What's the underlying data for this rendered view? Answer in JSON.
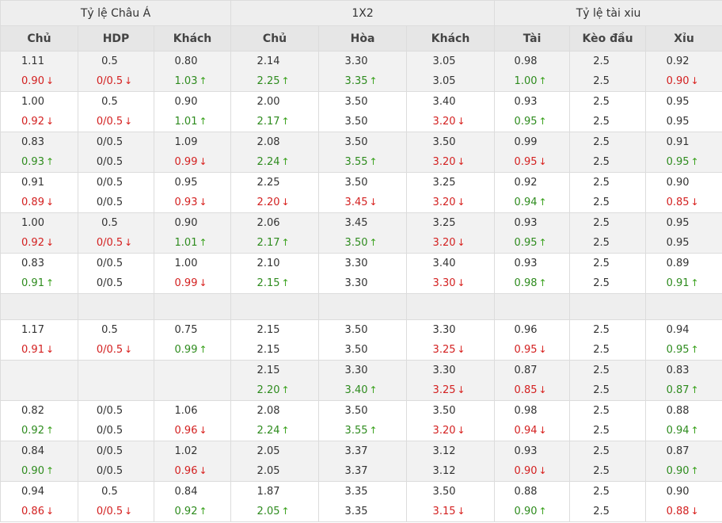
{
  "groups": [
    "Tỷ lệ Châu Á",
    "1X2",
    "Tỷ lệ tài xiu"
  ],
  "columns": [
    "Chủ",
    "HDP",
    "Khách",
    "Chủ",
    "Hòa",
    "Khách",
    "Tài",
    "Kèo đầu",
    "Xỉu"
  ],
  "colors": {
    "up": "#2e8b1e",
    "down": "#d32020",
    "neutral": "#333333"
  },
  "icons": {
    "up": "arrow-up-icon",
    "down": "arrow-down-icon"
  },
  "rows": [
    {
      "cells": [
        {
          "top": "1.11",
          "bot": "0.90",
          "dir": "down"
        },
        {
          "top": "0.5",
          "bot": "0/0.5",
          "dir": "down"
        },
        {
          "top": "0.80",
          "bot": "1.03",
          "dir": "up"
        },
        {
          "top": "2.14",
          "bot": "2.25",
          "dir": "up"
        },
        {
          "top": "3.30",
          "bot": "3.35",
          "dir": "up"
        },
        {
          "top": "3.05",
          "bot": "3.05",
          "dir": ""
        },
        {
          "top": "0.98",
          "bot": "1.00",
          "dir": "up"
        },
        {
          "top": "2.5",
          "bot": "2.5",
          "dir": ""
        },
        {
          "top": "0.92",
          "bot": "0.90",
          "dir": "down"
        }
      ]
    },
    {
      "cells": [
        {
          "top": "1.00",
          "bot": "0.92",
          "dir": "down"
        },
        {
          "top": "0.5",
          "bot": "0/0.5",
          "dir": "down"
        },
        {
          "top": "0.90",
          "bot": "1.01",
          "dir": "up"
        },
        {
          "top": "2.00",
          "bot": "2.17",
          "dir": "up"
        },
        {
          "top": "3.50",
          "bot": "3.50",
          "dir": ""
        },
        {
          "top": "3.40",
          "bot": "3.20",
          "dir": "down"
        },
        {
          "top": "0.93",
          "bot": "0.95",
          "dir": "up"
        },
        {
          "top": "2.5",
          "bot": "2.5",
          "dir": ""
        },
        {
          "top": "0.95",
          "bot": "0.95",
          "dir": ""
        }
      ]
    },
    {
      "cells": [
        {
          "top": "0.83",
          "bot": "0.93",
          "dir": "up"
        },
        {
          "top": "0/0.5",
          "bot": "0/0.5",
          "dir": ""
        },
        {
          "top": "1.09",
          "bot": "0.99",
          "dir": "down"
        },
        {
          "top": "2.08",
          "bot": "2.24",
          "dir": "up"
        },
        {
          "top": "3.50",
          "bot": "3.55",
          "dir": "up"
        },
        {
          "top": "3.50",
          "bot": "3.20",
          "dir": "down"
        },
        {
          "top": "0.99",
          "bot": "0.95",
          "dir": "down"
        },
        {
          "top": "2.5",
          "bot": "2.5",
          "dir": ""
        },
        {
          "top": "0.91",
          "bot": "0.95",
          "dir": "up"
        }
      ]
    },
    {
      "cells": [
        {
          "top": "0.91",
          "bot": "0.89",
          "dir": "down"
        },
        {
          "top": "0/0.5",
          "bot": "0/0.5",
          "dir": ""
        },
        {
          "top": "0.95",
          "bot": "0.93",
          "dir": "down"
        },
        {
          "top": "2.25",
          "bot": "2.20",
          "dir": "down"
        },
        {
          "top": "3.50",
          "bot": "3.45",
          "dir": "down"
        },
        {
          "top": "3.25",
          "bot": "3.20",
          "dir": "down"
        },
        {
          "top": "0.92",
          "bot": "0.94",
          "dir": "up"
        },
        {
          "top": "2.5",
          "bot": "2.5",
          "dir": ""
        },
        {
          "top": "0.90",
          "bot": "0.85",
          "dir": "down"
        }
      ]
    },
    {
      "cells": [
        {
          "top": "1.00",
          "bot": "0.92",
          "dir": "down"
        },
        {
          "top": "0.5",
          "bot": "0/0.5",
          "dir": "down"
        },
        {
          "top": "0.90",
          "bot": "1.01",
          "dir": "up"
        },
        {
          "top": "2.06",
          "bot": "2.17",
          "dir": "up"
        },
        {
          "top": "3.45",
          "bot": "3.50",
          "dir": "up"
        },
        {
          "top": "3.25",
          "bot": "3.20",
          "dir": "down"
        },
        {
          "top": "0.93",
          "bot": "0.95",
          "dir": "up"
        },
        {
          "top": "2.5",
          "bot": "2.5",
          "dir": ""
        },
        {
          "top": "0.95",
          "bot": "0.95",
          "dir": ""
        }
      ]
    },
    {
      "cells": [
        {
          "top": "0.83",
          "bot": "0.91",
          "dir": "up"
        },
        {
          "top": "0/0.5",
          "bot": "0/0.5",
          "dir": ""
        },
        {
          "top": "1.00",
          "bot": "0.99",
          "dir": "down"
        },
        {
          "top": "2.10",
          "bot": "2.15",
          "dir": "up"
        },
        {
          "top": "3.30",
          "bot": "3.30",
          "dir": ""
        },
        {
          "top": "3.40",
          "bot": "3.30",
          "dir": "down"
        },
        {
          "top": "0.93",
          "bot": "0.98",
          "dir": "up"
        },
        {
          "top": "2.5",
          "bot": "2.5",
          "dir": ""
        },
        {
          "top": "0.89",
          "bot": "0.91",
          "dir": "up"
        }
      ]
    },
    {
      "empty": true
    },
    {
      "cells": [
        {
          "top": "1.17",
          "bot": "0.91",
          "dir": "down"
        },
        {
          "top": "0.5",
          "bot": "0/0.5",
          "dir": "down"
        },
        {
          "top": "0.75",
          "bot": "0.99",
          "dir": "up"
        },
        {
          "top": "2.15",
          "bot": "2.15",
          "dir": ""
        },
        {
          "top": "3.50",
          "bot": "3.50",
          "dir": ""
        },
        {
          "top": "3.30",
          "bot": "3.25",
          "dir": "down"
        },
        {
          "top": "0.96",
          "bot": "0.95",
          "dir": "down"
        },
        {
          "top": "2.5",
          "bot": "2.5",
          "dir": ""
        },
        {
          "top": "0.94",
          "bot": "0.95",
          "dir": "up"
        }
      ]
    },
    {
      "cells": [
        {
          "top": "",
          "bot": "",
          "dir": ""
        },
        {
          "top": "",
          "bot": "",
          "dir": ""
        },
        {
          "top": "",
          "bot": "",
          "dir": ""
        },
        {
          "top": "2.15",
          "bot": "2.20",
          "dir": "up"
        },
        {
          "top": "3.30",
          "bot": "3.40",
          "dir": "up"
        },
        {
          "top": "3.30",
          "bot": "3.25",
          "dir": "down"
        },
        {
          "top": "0.87",
          "bot": "0.85",
          "dir": "down"
        },
        {
          "top": "2.5",
          "bot": "2.5",
          "dir": ""
        },
        {
          "top": "0.83",
          "bot": "0.87",
          "dir": "up"
        }
      ]
    },
    {
      "cells": [
        {
          "top": "0.82",
          "bot": "0.92",
          "dir": "up"
        },
        {
          "top": "0/0.5",
          "bot": "0/0.5",
          "dir": ""
        },
        {
          "top": "1.06",
          "bot": "0.96",
          "dir": "down"
        },
        {
          "top": "2.08",
          "bot": "2.24",
          "dir": "up"
        },
        {
          "top": "3.50",
          "bot": "3.55",
          "dir": "up"
        },
        {
          "top": "3.50",
          "bot": "3.20",
          "dir": "down"
        },
        {
          "top": "0.98",
          "bot": "0.94",
          "dir": "down"
        },
        {
          "top": "2.5",
          "bot": "2.5",
          "dir": ""
        },
        {
          "top": "0.88",
          "bot": "0.94",
          "dir": "up"
        }
      ]
    },
    {
      "cells": [
        {
          "top": "0.84",
          "bot": "0.90",
          "dir": "up"
        },
        {
          "top": "0/0.5",
          "bot": "0/0.5",
          "dir": ""
        },
        {
          "top": "1.02",
          "bot": "0.96",
          "dir": "down"
        },
        {
          "top": "2.05",
          "bot": "2.05",
          "dir": ""
        },
        {
          "top": "3.37",
          "bot": "3.37",
          "dir": ""
        },
        {
          "top": "3.12",
          "bot": "3.12",
          "dir": ""
        },
        {
          "top": "0.93",
          "bot": "0.90",
          "dir": "down"
        },
        {
          "top": "2.5",
          "bot": "2.5",
          "dir": ""
        },
        {
          "top": "0.87",
          "bot": "0.90",
          "dir": "up"
        }
      ]
    },
    {
      "cells": [
        {
          "top": "0.94",
          "bot": "0.86",
          "dir": "down"
        },
        {
          "top": "0.5",
          "bot": "0/0.5",
          "dir": "down"
        },
        {
          "top": "0.84",
          "bot": "0.92",
          "dir": "up"
        },
        {
          "top": "1.87",
          "bot": "2.05",
          "dir": "up"
        },
        {
          "top": "3.35",
          "bot": "3.35",
          "dir": ""
        },
        {
          "top": "3.50",
          "bot": "3.15",
          "dir": "down"
        },
        {
          "top": "0.88",
          "bot": "0.90",
          "dir": "up"
        },
        {
          "top": "2.5",
          "bot": "2.5",
          "dir": ""
        },
        {
          "top": "0.90",
          "bot": "0.88",
          "dir": "down"
        }
      ]
    }
  ]
}
